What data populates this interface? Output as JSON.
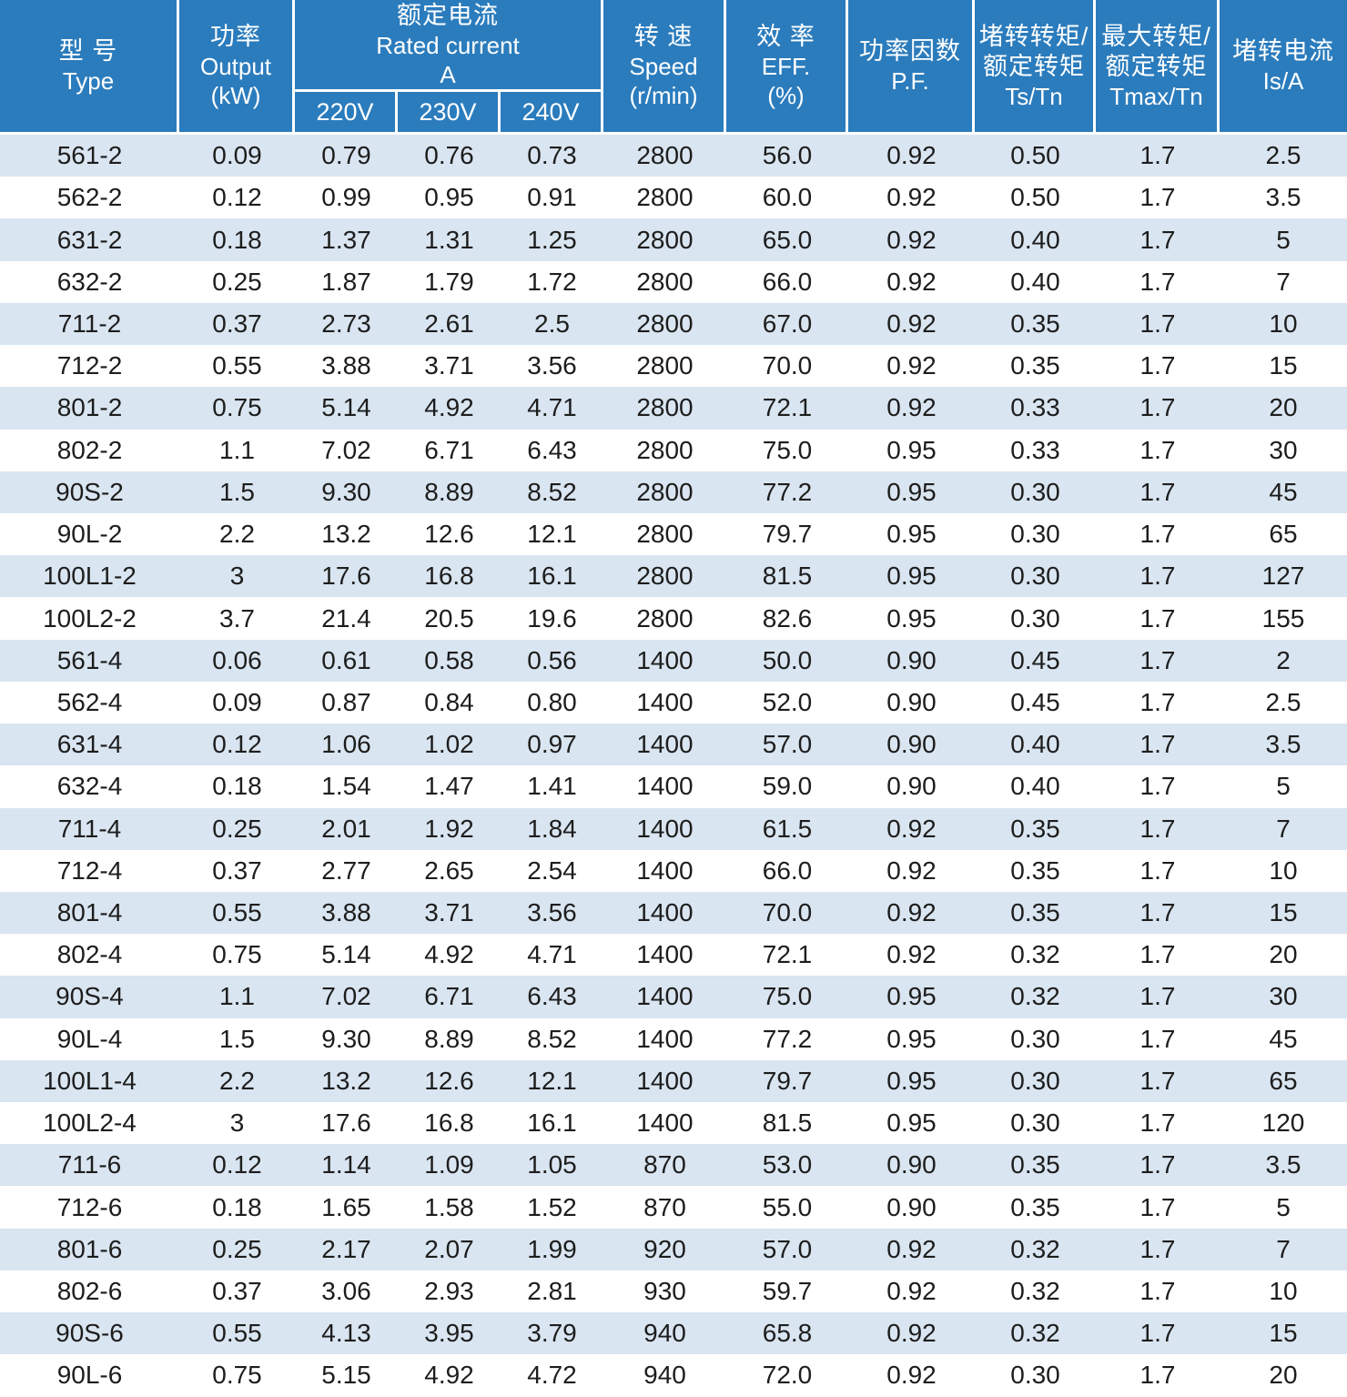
{
  "colors": {
    "header_bg": "#2B7CBD",
    "header_text": "#FFFFFF",
    "stripe_bg": "#D9E5F0",
    "data_text": "#1D1D1D"
  },
  "table": {
    "header": {
      "type": {
        "zh": "型 号",
        "en": "Type"
      },
      "output": {
        "zh": "功率",
        "en": "Output",
        "unit": "(kW)"
      },
      "rated_current": {
        "zh": "额定电流",
        "en": "Rated current",
        "unit": "A"
      },
      "voltages": [
        "220V",
        "230V",
        "240V"
      ],
      "speed": {
        "zh": "转 速",
        "en": "Speed",
        "unit": "(r/min)"
      },
      "efficiency": {
        "zh": "效 率",
        "en": "EFF.",
        "unit": "(%)"
      },
      "power_factor": {
        "zh": "功率因数",
        "en": "P.F."
      },
      "locked_rotor_torque": {
        "zh": "堵转转矩/",
        "zh2": "额定转矩",
        "en": "Ts/Tn"
      },
      "max_torque": {
        "zh": "最大转矩/",
        "zh2": "额定转矩",
        "en": "Tmax/Tn"
      },
      "locked_rotor_current": {
        "zh": "堵转电流",
        "en": "Is/A"
      }
    },
    "rows": [
      [
        "561-2",
        "0.09",
        "0.79",
        "0.76",
        "0.73",
        "2800",
        "56.0",
        "0.92",
        "0.50",
        "1.7",
        "2.5"
      ],
      [
        "562-2",
        "0.12",
        "0.99",
        "0.95",
        "0.91",
        "2800",
        "60.0",
        "0.92",
        "0.50",
        "1.7",
        "3.5"
      ],
      [
        "631-2",
        "0.18",
        "1.37",
        "1.31",
        "1.25",
        "2800",
        "65.0",
        "0.92",
        "0.40",
        "1.7",
        "5"
      ],
      [
        "632-2",
        "0.25",
        "1.87",
        "1.79",
        "1.72",
        "2800",
        "66.0",
        "0.92",
        "0.40",
        "1.7",
        "7"
      ],
      [
        "711-2",
        "0.37",
        "2.73",
        "2.61",
        "2.5",
        "2800",
        "67.0",
        "0.92",
        "0.35",
        "1.7",
        "10"
      ],
      [
        "712-2",
        "0.55",
        "3.88",
        "3.71",
        "3.56",
        "2800",
        "70.0",
        "0.92",
        "0.35",
        "1.7",
        "15"
      ],
      [
        "801-2",
        "0.75",
        "5.14",
        "4.92",
        "4.71",
        "2800",
        "72.1",
        "0.92",
        "0.33",
        "1.7",
        "20"
      ],
      [
        "802-2",
        "1.1",
        "7.02",
        "6.71",
        "6.43",
        "2800",
        "75.0",
        "0.95",
        "0.33",
        "1.7",
        "30"
      ],
      [
        "90S-2",
        "1.5",
        "9.30",
        "8.89",
        "8.52",
        "2800",
        "77.2",
        "0.95",
        "0.30",
        "1.7",
        "45"
      ],
      [
        "90L-2",
        "2.2",
        "13.2",
        "12.6",
        "12.1",
        "2800",
        "79.7",
        "0.95",
        "0.30",
        "1.7",
        "65"
      ],
      [
        "100L1-2",
        "3",
        "17.6",
        "16.8",
        "16.1",
        "2800",
        "81.5",
        "0.95",
        "0.30",
        "1.7",
        "127"
      ],
      [
        "100L2-2",
        "3.7",
        "21.4",
        "20.5",
        "19.6",
        "2800",
        "82.6",
        "0.95",
        "0.30",
        "1.7",
        "155"
      ],
      [
        "561-4",
        "0.06",
        "0.61",
        "0.58",
        "0.56",
        "1400",
        "50.0",
        "0.90",
        "0.45",
        "1.7",
        "2"
      ],
      [
        "562-4",
        "0.09",
        "0.87",
        "0.84",
        "0.80",
        "1400",
        "52.0",
        "0.90",
        "0.45",
        "1.7",
        "2.5"
      ],
      [
        "631-4",
        "0.12",
        "1.06",
        "1.02",
        "0.97",
        "1400",
        "57.0",
        "0.90",
        "0.40",
        "1.7",
        "3.5"
      ],
      [
        "632-4",
        "0.18",
        "1.54",
        "1.47",
        "1.41",
        "1400",
        "59.0",
        "0.90",
        "0.40",
        "1.7",
        "5"
      ],
      [
        "711-4",
        "0.25",
        "2.01",
        "1.92",
        "1.84",
        "1400",
        "61.5",
        "0.92",
        "0.35",
        "1.7",
        "7"
      ],
      [
        "712-4",
        "0.37",
        "2.77",
        "2.65",
        "2.54",
        "1400",
        "66.0",
        "0.92",
        "0.35",
        "1.7",
        "10"
      ],
      [
        "801-4",
        "0.55",
        "3.88",
        "3.71",
        "3.56",
        "1400",
        "70.0",
        "0.92",
        "0.35",
        "1.7",
        "15"
      ],
      [
        "802-4",
        "0.75",
        "5.14",
        "4.92",
        "4.71",
        "1400",
        "72.1",
        "0.92",
        "0.32",
        "1.7",
        "20"
      ],
      [
        "90S-4",
        "1.1",
        "7.02",
        "6.71",
        "6.43",
        "1400",
        "75.0",
        "0.95",
        "0.32",
        "1.7",
        "30"
      ],
      [
        "90L-4",
        "1.5",
        "9.30",
        "8.89",
        "8.52",
        "1400",
        "77.2",
        "0.95",
        "0.30",
        "1.7",
        "45"
      ],
      [
        "100L1-4",
        "2.2",
        "13.2",
        "12.6",
        "12.1",
        "1400",
        "79.7",
        "0.95",
        "0.30",
        "1.7",
        "65"
      ],
      [
        "100L2-4",
        "3",
        "17.6",
        "16.8",
        "16.1",
        "1400",
        "81.5",
        "0.95",
        "0.30",
        "1.7",
        "120"
      ],
      [
        "711-6",
        "0.12",
        "1.14",
        "1.09",
        "1.05",
        "870",
        "53.0",
        "0.90",
        "0.35",
        "1.7",
        "3.5"
      ],
      [
        "712-6",
        "0.18",
        "1.65",
        "1.58",
        "1.52",
        "870",
        "55.0",
        "0.90",
        "0.35",
        "1.7",
        "5"
      ],
      [
        "801-6",
        "0.25",
        "2.17",
        "2.07",
        "1.99",
        "920",
        "57.0",
        "0.92",
        "0.32",
        "1.7",
        "7"
      ],
      [
        "802-6",
        "0.37",
        "3.06",
        "2.93",
        "2.81",
        "930",
        "59.7",
        "0.92",
        "0.32",
        "1.7",
        "10"
      ],
      [
        "90S-6",
        "0.55",
        "4.13",
        "3.95",
        "3.79",
        "940",
        "65.8",
        "0.92",
        "0.32",
        "1.7",
        "15"
      ],
      [
        "90L-6",
        "0.75",
        "5.15",
        "4.92",
        "4.72",
        "940",
        "72.0",
        "0.92",
        "0.30",
        "1.7",
        "20"
      ]
    ]
  }
}
